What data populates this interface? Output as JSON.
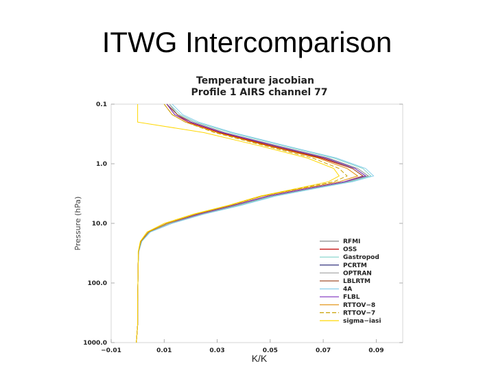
{
  "slide": {
    "title": "ITWG Intercomparison"
  },
  "chart_data": {
    "type": "line",
    "title": "Temperature jacobian",
    "subtitle": "Profile 1 AIRS channel 77",
    "xlabel": "K/K",
    "ylabel": "Pressure (hPa)",
    "xlim": [
      -0.01,
      0.1
    ],
    "ylim": [
      0.1,
      1000
    ],
    "yscale": "log",
    "y_inverted": true,
    "xticks": [
      {
        "v": -0.01,
        "label": "−0.01"
      },
      {
        "v": 0.01,
        "label": "0.01"
      },
      {
        "v": 0.03,
        "label": "0.03"
      },
      {
        "v": 0.05,
        "label": "0.05"
      },
      {
        "v": 0.07,
        "label": "0.07"
      },
      {
        "v": 0.09,
        "label": "0.09"
      }
    ],
    "yticks": [
      {
        "v": 0.1,
        "label": "0.1"
      },
      {
        "v": 1.0,
        "label": "1.0"
      },
      {
        "v": 10.0,
        "label": "10.0"
      },
      {
        "v": 100.0,
        "label": "100.0"
      },
      {
        "v": 1000.0,
        "label": "1000.0"
      }
    ],
    "grid": false,
    "legend_position": "bottom-right",
    "pressure": [
      0.1,
      0.15,
      0.2,
      0.3,
      0.5,
      0.8,
      1.2,
      1.6,
      2.0,
      2.6,
      3.5,
      5.0,
      7.0,
      10.0,
      14.0,
      20.0,
      30.0,
      50.0,
      100.0,
      200.0,
      500.0,
      1000.0
    ],
    "series": [
      {
        "name": "RFMI",
        "color": "#888888",
        "dash": "",
        "values": [
          0.012,
          0.015,
          0.021,
          0.033,
          0.053,
          0.072,
          0.083,
          0.087,
          0.079,
          0.065,
          0.05,
          0.038,
          0.024,
          0.012,
          0.0045,
          0.0015,
          0.0003,
          0.0002,
          0.0001,
          0.0,
          0.0,
          -0.0005
        ]
      },
      {
        "name": "OSS",
        "color": "#c00000",
        "dash": "",
        "values": [
          0.011,
          0.014,
          0.019,
          0.031,
          0.05,
          0.069,
          0.081,
          0.085,
          0.078,
          0.064,
          0.049,
          0.036,
          0.023,
          0.011,
          0.004,
          0.0012,
          0.0003,
          0.0002,
          0.0001,
          0.0,
          0.0,
          -0.0005
        ]
      },
      {
        "name": "Gastropod",
        "color": "#7fd3c8",
        "dash": "",
        "values": [
          0.012,
          0.016,
          0.022,
          0.035,
          0.055,
          0.074,
          0.085,
          0.088,
          0.08,
          0.066,
          0.051,
          0.038,
          0.025,
          0.012,
          0.0045,
          0.0015,
          0.0004,
          0.0002,
          0.0001,
          0.0,
          0.0,
          -0.0005
        ]
      },
      {
        "name": "PCRTM",
        "color": "#1a1a6e",
        "dash": "",
        "values": [
          0.011,
          0.015,
          0.02,
          0.032,
          0.052,
          0.071,
          0.082,
          0.086,
          0.079,
          0.065,
          0.05,
          0.037,
          0.024,
          0.012,
          0.0042,
          0.0013,
          0.0003,
          0.0002,
          0.0001,
          0.0,
          0.0,
          -0.0005
        ]
      },
      {
        "name": "OPTRAN",
        "color": "#aaaaaa",
        "dash": "",
        "values": [
          0.012,
          0.015,
          0.021,
          0.033,
          0.053,
          0.072,
          0.082,
          0.086,
          0.079,
          0.065,
          0.05,
          0.037,
          0.024,
          0.012,
          0.0043,
          0.0014,
          0.0003,
          0.0002,
          0.0001,
          0.0,
          0.0,
          -0.0005
        ]
      },
      {
        "name": "LBLRTM",
        "color": "#a0522d",
        "dash": "",
        "values": [
          0.011,
          0.015,
          0.02,
          0.032,
          0.051,
          0.07,
          0.081,
          0.085,
          0.078,
          0.064,
          0.049,
          0.036,
          0.023,
          0.011,
          0.0041,
          0.0013,
          0.0003,
          0.0002,
          0.0001,
          0.0,
          0.0,
          -0.0005
        ]
      },
      {
        "name": "4A",
        "color": "#87ceeb",
        "dash": "",
        "values": [
          0.013,
          0.017,
          0.023,
          0.036,
          0.056,
          0.075,
          0.086,
          0.089,
          0.081,
          0.067,
          0.052,
          0.039,
          0.025,
          0.013,
          0.0048,
          0.0016,
          0.0004,
          0.0002,
          0.0001,
          0.0,
          0.0,
          -0.0005
        ]
      },
      {
        "name": "FLBL",
        "color": "#7b2fbf",
        "dash": "",
        "values": [
          0.011,
          0.014,
          0.02,
          0.032,
          0.052,
          0.071,
          0.082,
          0.086,
          0.078,
          0.064,
          0.049,
          0.036,
          0.023,
          0.011,
          0.004,
          0.0012,
          0.0003,
          0.0002,
          0.0001,
          0.0,
          0.0,
          -0.0005
        ]
      },
      {
        "name": "RTTOV−8",
        "color": "#e08a00",
        "dash": "",
        "values": [
          0.01,
          0.013,
          0.018,
          0.03,
          0.049,
          0.068,
          0.079,
          0.083,
          0.076,
          0.062,
          0.047,
          0.035,
          0.022,
          0.011,
          0.004,
          0.0012,
          0.0003,
          0.0002,
          0.0001,
          0.0,
          0.0,
          -0.0005
        ]
      },
      {
        "name": "RTTOV−7",
        "color": "#c8a000",
        "dash": "6,3",
        "values": [
          0.01,
          0.013,
          0.018,
          0.029,
          0.048,
          0.066,
          0.076,
          0.079,
          0.074,
          0.061,
          0.047,
          0.035,
          0.022,
          0.011,
          0.004,
          0.0012,
          0.0003,
          0.0002,
          0.0001,
          0.0,
          0.0,
          -0.0005
        ]
      },
      {
        "name": "sigma−iasi",
        "color": "#ffd700",
        "dash": "",
        "values": [
          0.0,
          0.0,
          0.0,
          0.025,
          0.046,
          0.064,
          0.074,
          0.076,
          0.072,
          0.06,
          0.046,
          0.034,
          0.021,
          0.01,
          0.0035,
          0.001,
          0.0002,
          0.0002,
          0.0001,
          0.0,
          0.0,
          -0.0005
        ]
      }
    ]
  }
}
